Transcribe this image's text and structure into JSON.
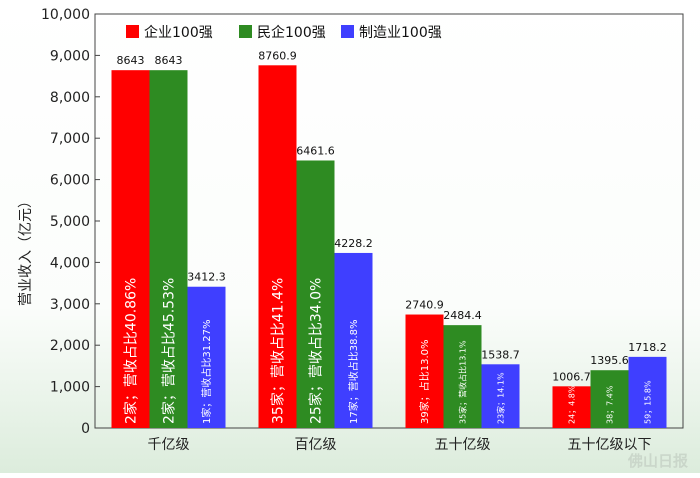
{
  "chart_data": {
    "type": "bar",
    "ylabel": "营业收入（亿元）",
    "xlabel": "",
    "ylim": [
      0,
      10000
    ],
    "yticks": [
      0,
      1000,
      2000,
      3000,
      4000,
      5000,
      6000,
      7000,
      8000,
      9000,
      10000
    ],
    "ytick_labels": [
      "0",
      "1,000",
      "2,000",
      "3,000",
      "4,000",
      "5,000",
      "6,000",
      "7,000",
      "8,000",
      "9,000",
      "10,000"
    ],
    "grid": false,
    "legend_position": "top-left",
    "categories": [
      "千亿级",
      "百亿级",
      "五十亿级",
      "五十亿级以下"
    ],
    "series": [
      {
        "name": "企业100强",
        "color": "#ff0000",
        "values": [
          8643,
          8760.9,
          2740.9,
          1006.7
        ],
        "value_labels": [
          "8643",
          "8760.9",
          "2740.9",
          "1006.7"
        ],
        "annotations": [
          "2家；营收占比40.86%",
          "35家；营收占比41.4%",
          "39家；占比13.0%",
          "24；4.8%"
        ]
      },
      {
        "name": "民企100强",
        "color": "#2e8b22",
        "values": [
          8643,
          6461.6,
          2484.4,
          1395.6
        ],
        "value_labels": [
          "8643",
          "6461.6",
          "2484.4",
          "1395.6"
        ],
        "annotations": [
          "2家；营收占比45.53%",
          "25家；营收占比34.0%",
          "35家；营收占比13.1%",
          "38；7.4%"
        ]
      },
      {
        "name": "制造业100强",
        "color": "#3f3fff",
        "values": [
          3412.3,
          4228.2,
          1538.7,
          1718.2
        ],
        "value_labels": [
          "3412.3",
          "4228.2",
          "1538.7",
          "1718.2"
        ],
        "annotations": [
          "1家；营收占比31.27%",
          "17家；营收占比38.8%",
          "23家；14.1%",
          "59；15.8%"
        ]
      }
    ],
    "watermark": "佛山日报"
  }
}
